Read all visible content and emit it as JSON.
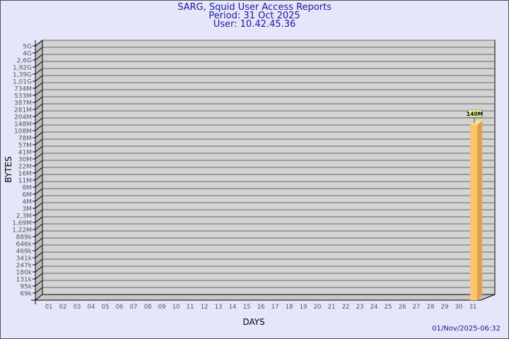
{
  "chart_data": {
    "type": "bar",
    "title": "SARG, Squid User Access Reports",
    "subtitle": [
      "Period: 31 Oct 2025",
      "User: 10.42.45.36"
    ],
    "xlabel": "DAYS",
    "ylabel": "BYTES",
    "y_scale": "log",
    "y_tick_labels": [
      "5G",
      "4G",
      "2,6G",
      "1,92G",
      "1,39G",
      "1,01G",
      "734M",
      "533M",
      "387M",
      "281M",
      "204M",
      "148M",
      "108M",
      "78M",
      "57M",
      "41M",
      "30M",
      "22M",
      "16M",
      "11M",
      "8M",
      "6M",
      "4M",
      "3M",
      "2,3M",
      "1,69M",
      "1,22M",
      "889k",
      "646k",
      "469k",
      "341k",
      "247k",
      "180k",
      "131k",
      "95k",
      "69k"
    ],
    "categories": [
      "01",
      "02",
      "03",
      "04",
      "05",
      "06",
      "07",
      "08",
      "09",
      "10",
      "11",
      "12",
      "13",
      "14",
      "15",
      "16",
      "17",
      "18",
      "19",
      "20",
      "21",
      "22",
      "23",
      "24",
      "25",
      "26",
      "27",
      "28",
      "29",
      "30",
      "31"
    ],
    "values": [
      null,
      null,
      null,
      null,
      null,
      null,
      null,
      null,
      null,
      null,
      null,
      null,
      null,
      null,
      null,
      null,
      null,
      null,
      null,
      null,
      null,
      null,
      null,
      null,
      null,
      null,
      null,
      null,
      null,
      null,
      140000000
    ],
    "data_labels": {
      "31": "140M"
    },
    "grid": true,
    "colors": {
      "bar_front": "#fec46c",
      "bar_side": "#dca24c",
      "plot_bg": "#d3d3d3",
      "title": "#1a1aa0"
    }
  },
  "footer": {
    "timestamp": "01/Nov/2025-06:32"
  }
}
